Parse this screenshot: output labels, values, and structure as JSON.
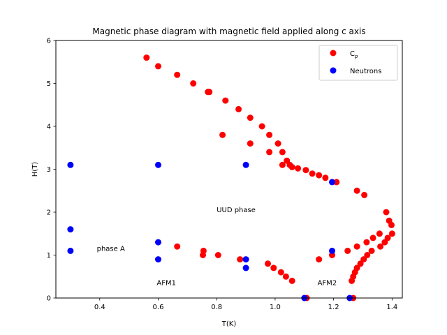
{
  "chart_data": {
    "type": "scatter",
    "title": "Magnetic phase diagram with magnetic field applied along c axis",
    "xlabel": "T(K)",
    "ylabel": "H(T)",
    "xlim": [
      0.25,
      1.435
    ],
    "ylim": [
      0,
      6
    ],
    "xticks": [
      "0.4",
      "0.6",
      "0.8",
      "1.0",
      "1.2",
      "1.4"
    ],
    "yticks": [
      "0",
      "1",
      "2",
      "3",
      "4",
      "5",
      "6"
    ],
    "grid": false,
    "legend_position": "upper right",
    "series": [
      {
        "name": "C",
        "name_subscript": "p",
        "color": "#ff0000",
        "points": [
          [
            0.56,
            5.6
          ],
          [
            0.6,
            5.4
          ],
          [
            0.665,
            5.2
          ],
          [
            0.72,
            5.0
          ],
          [
            0.77,
            4.8
          ],
          [
            0.775,
            4.8
          ],
          [
            0.83,
            4.6
          ],
          [
            0.875,
            4.4
          ],
          [
            0.915,
            4.2
          ],
          [
            0.955,
            4.0
          ],
          [
            0.98,
            3.8
          ],
          [
            1.01,
            3.6
          ],
          [
            1.025,
            3.4
          ],
          [
            1.04,
            3.2
          ],
          [
            1.05,
            3.1
          ],
          [
            1.058,
            3.05
          ],
          [
            1.078,
            3.02
          ],
          [
            1.105,
            2.98
          ],
          [
            1.127,
            2.9
          ],
          [
            1.15,
            2.86
          ],
          [
            1.172,
            2.8
          ],
          [
            1.21,
            2.7
          ],
          [
            0.82,
            3.8
          ],
          [
            0.915,
            3.6
          ],
          [
            0.98,
            3.4
          ],
          [
            1.025,
            3.1
          ],
          [
            1.28,
            2.5
          ],
          [
            1.305,
            2.4
          ],
          [
            0.665,
            1.2
          ],
          [
            0.755,
            1.1
          ],
          [
            0.753,
            1.0
          ],
          [
            0.805,
            1.0
          ],
          [
            0.88,
            0.9
          ],
          [
            0.975,
            0.8
          ],
          [
            0.995,
            0.7
          ],
          [
            1.02,
            0.6
          ],
          [
            1.037,
            0.5
          ],
          [
            1.058,
            0.4
          ],
          [
            1.108,
            0.0
          ],
          [
            1.15,
            0.9
          ],
          [
            1.195,
            1.0
          ],
          [
            1.248,
            1.1
          ],
          [
            1.28,
            1.2
          ],
          [
            1.313,
            1.3
          ],
          [
            1.335,
            1.4
          ],
          [
            1.357,
            1.5
          ],
          [
            1.38,
            2.0
          ],
          [
            1.39,
            1.8
          ],
          [
            1.398,
            1.7
          ],
          [
            1.4,
            1.5
          ],
          [
            1.385,
            1.4
          ],
          [
            1.375,
            1.3
          ],
          [
            1.36,
            1.2
          ],
          [
            1.33,
            1.1
          ],
          [
            1.315,
            1.0
          ],
          [
            1.303,
            0.9
          ],
          [
            1.292,
            0.8
          ],
          [
            1.28,
            0.7
          ],
          [
            1.273,
            0.6
          ],
          [
            1.267,
            0.5
          ],
          [
            1.262,
            0.4
          ],
          [
            1.267,
            0.0
          ]
        ]
      },
      {
        "name": "Neutrons",
        "color": "#0000ff",
        "points": [
          [
            0.3,
            3.1
          ],
          [
            0.6,
            3.1
          ],
          [
            0.9,
            3.1
          ],
          [
            1.195,
            2.7
          ],
          [
            0.3,
            1.6
          ],
          [
            0.3,
            1.1
          ],
          [
            0.6,
            1.3
          ],
          [
            0.6,
            0.9
          ],
          [
            0.9,
            0.9
          ],
          [
            0.9,
            0.7
          ],
          [
            1.195,
            1.1
          ],
          [
            1.1,
            0.0
          ],
          [
            1.255,
            0.0
          ]
        ]
      }
    ],
    "annotations": [
      {
        "text": "UUD phase",
        "x": 0.8,
        "y": 2.0
      },
      {
        "text": "phase A",
        "x": 0.39,
        "y": 1.1
      },
      {
        "text": "AFM1",
        "x": 0.595,
        "y": 0.3
      },
      {
        "text": "AFM2",
        "x": 1.145,
        "y": 0.3
      }
    ]
  }
}
